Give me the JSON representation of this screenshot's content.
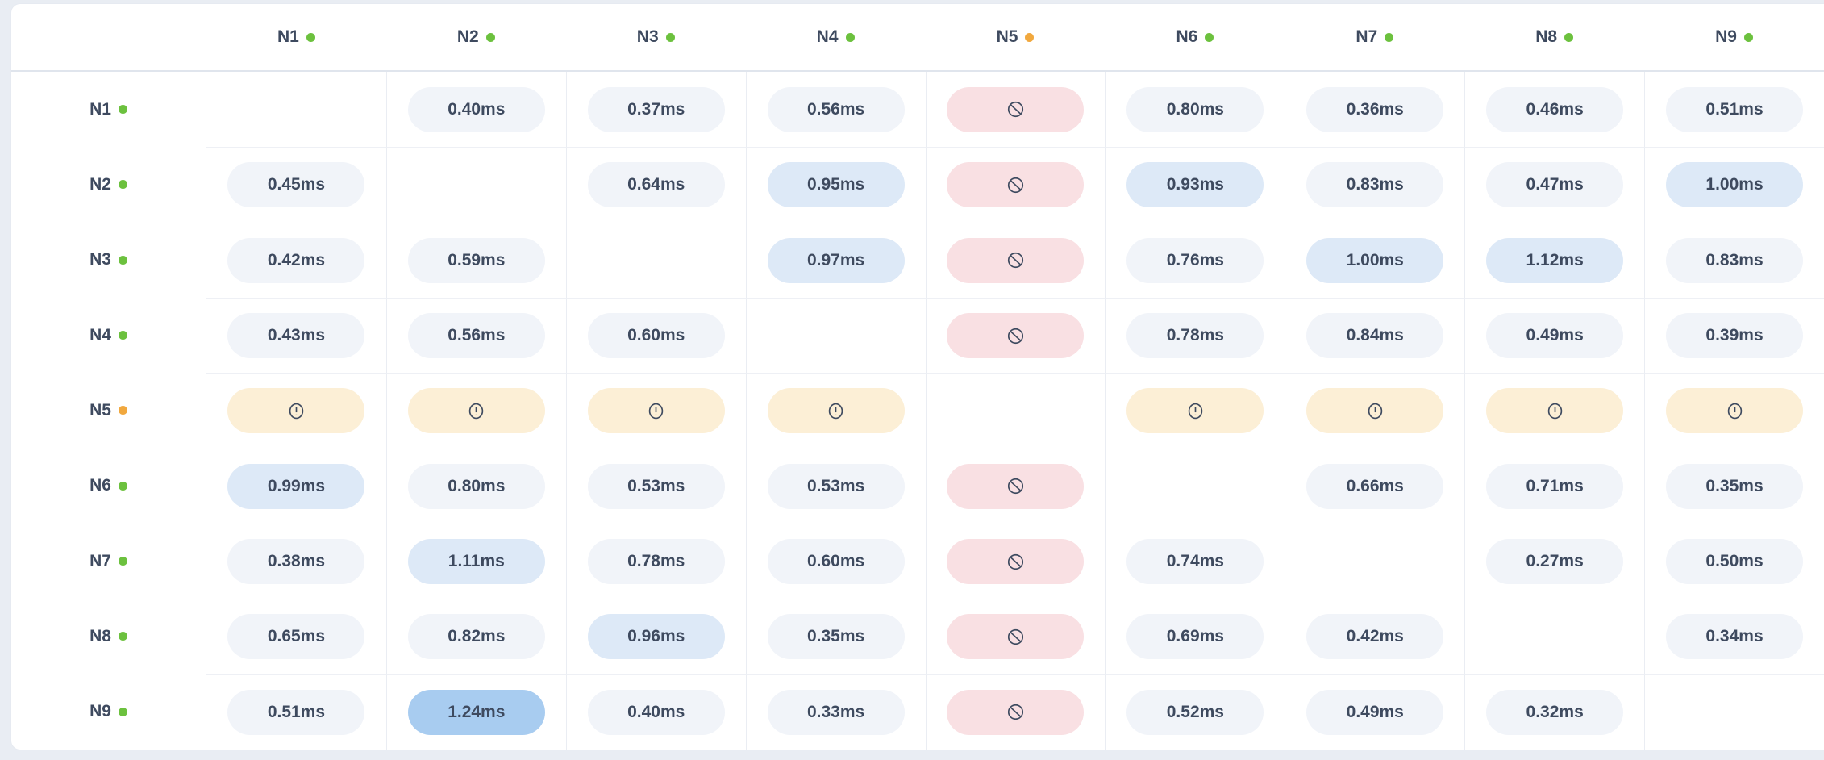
{
  "colors": {
    "page_bg": "#e9edf3",
    "card_bg": "#ffffff",
    "text": "#3e4a5f",
    "dot_online": "#6cc13e",
    "dot_warning": "#f1a83e",
    "pill_normal": "#f1f4f9",
    "pill_elevated": "#dde9f7",
    "pill_high": "#a8ccf0",
    "pill_blocked": "#f9e0e3",
    "pill_warn": "#fcefd6"
  },
  "matrix": {
    "columns": [
      {
        "label": "N1",
        "status": "online"
      },
      {
        "label": "N2",
        "status": "online"
      },
      {
        "label": "N3",
        "status": "online"
      },
      {
        "label": "N4",
        "status": "online"
      },
      {
        "label": "N5",
        "status": "warning"
      },
      {
        "label": "N6",
        "status": "online"
      },
      {
        "label": "N7",
        "status": "online"
      },
      {
        "label": "N8",
        "status": "online"
      },
      {
        "label": "N9",
        "status": "online"
      }
    ],
    "rows": [
      {
        "label": "N1",
        "status": "online",
        "cells": [
          {
            "type": "self"
          },
          {
            "type": "latency",
            "value": "0.40ms",
            "level": "normal"
          },
          {
            "type": "latency",
            "value": "0.37ms",
            "level": "normal"
          },
          {
            "type": "latency",
            "value": "0.56ms",
            "level": "normal"
          },
          {
            "type": "blocked"
          },
          {
            "type": "latency",
            "value": "0.80ms",
            "level": "normal"
          },
          {
            "type": "latency",
            "value": "0.36ms",
            "level": "normal"
          },
          {
            "type": "latency",
            "value": "0.46ms",
            "level": "normal"
          },
          {
            "type": "latency",
            "value": "0.51ms",
            "level": "normal"
          }
        ]
      },
      {
        "label": "N2",
        "status": "online",
        "cells": [
          {
            "type": "latency",
            "value": "0.45ms",
            "level": "normal"
          },
          {
            "type": "self"
          },
          {
            "type": "latency",
            "value": "0.64ms",
            "level": "normal"
          },
          {
            "type": "latency",
            "value": "0.95ms",
            "level": "elevated"
          },
          {
            "type": "blocked"
          },
          {
            "type": "latency",
            "value": "0.93ms",
            "level": "elevated"
          },
          {
            "type": "latency",
            "value": "0.83ms",
            "level": "normal"
          },
          {
            "type": "latency",
            "value": "0.47ms",
            "level": "normal"
          },
          {
            "type": "latency",
            "value": "1.00ms",
            "level": "elevated"
          }
        ]
      },
      {
        "label": "N3",
        "status": "online",
        "cells": [
          {
            "type": "latency",
            "value": "0.42ms",
            "level": "normal"
          },
          {
            "type": "latency",
            "value": "0.59ms",
            "level": "normal"
          },
          {
            "type": "self"
          },
          {
            "type": "latency",
            "value": "0.97ms",
            "level": "elevated"
          },
          {
            "type": "blocked"
          },
          {
            "type": "latency",
            "value": "0.76ms",
            "level": "normal"
          },
          {
            "type": "latency",
            "value": "1.00ms",
            "level": "elevated"
          },
          {
            "type": "latency",
            "value": "1.12ms",
            "level": "elevated"
          },
          {
            "type": "latency",
            "value": "0.83ms",
            "level": "normal"
          }
        ]
      },
      {
        "label": "N4",
        "status": "online",
        "cells": [
          {
            "type": "latency",
            "value": "0.43ms",
            "level": "normal"
          },
          {
            "type": "latency",
            "value": "0.56ms",
            "level": "normal"
          },
          {
            "type": "latency",
            "value": "0.60ms",
            "level": "normal"
          },
          {
            "type": "self"
          },
          {
            "type": "blocked"
          },
          {
            "type": "latency",
            "value": "0.78ms",
            "level": "normal"
          },
          {
            "type": "latency",
            "value": "0.84ms",
            "level": "normal"
          },
          {
            "type": "latency",
            "value": "0.49ms",
            "level": "normal"
          },
          {
            "type": "latency",
            "value": "0.39ms",
            "level": "normal"
          }
        ]
      },
      {
        "label": "N5",
        "status": "warning",
        "cells": [
          {
            "type": "warn"
          },
          {
            "type": "warn"
          },
          {
            "type": "warn"
          },
          {
            "type": "warn"
          },
          {
            "type": "self"
          },
          {
            "type": "warn"
          },
          {
            "type": "warn"
          },
          {
            "type": "warn"
          },
          {
            "type": "warn"
          }
        ]
      },
      {
        "label": "N6",
        "status": "online",
        "cells": [
          {
            "type": "latency",
            "value": "0.99ms",
            "level": "elevated"
          },
          {
            "type": "latency",
            "value": "0.80ms",
            "level": "normal"
          },
          {
            "type": "latency",
            "value": "0.53ms",
            "level": "normal"
          },
          {
            "type": "latency",
            "value": "0.53ms",
            "level": "normal"
          },
          {
            "type": "blocked"
          },
          {
            "type": "self"
          },
          {
            "type": "latency",
            "value": "0.66ms",
            "level": "normal"
          },
          {
            "type": "latency",
            "value": "0.71ms",
            "level": "normal"
          },
          {
            "type": "latency",
            "value": "0.35ms",
            "level": "normal"
          }
        ]
      },
      {
        "label": "N7",
        "status": "online",
        "cells": [
          {
            "type": "latency",
            "value": "0.38ms",
            "level": "normal"
          },
          {
            "type": "latency",
            "value": "1.11ms",
            "level": "elevated"
          },
          {
            "type": "latency",
            "value": "0.78ms",
            "level": "normal"
          },
          {
            "type": "latency",
            "value": "0.60ms",
            "level": "normal"
          },
          {
            "type": "blocked"
          },
          {
            "type": "latency",
            "value": "0.74ms",
            "level": "normal"
          },
          {
            "type": "self"
          },
          {
            "type": "latency",
            "value": "0.27ms",
            "level": "normal"
          },
          {
            "type": "latency",
            "value": "0.50ms",
            "level": "normal"
          }
        ]
      },
      {
        "label": "N8",
        "status": "online",
        "cells": [
          {
            "type": "latency",
            "value": "0.65ms",
            "level": "normal"
          },
          {
            "type": "latency",
            "value": "0.82ms",
            "level": "normal"
          },
          {
            "type": "latency",
            "value": "0.96ms",
            "level": "elevated"
          },
          {
            "type": "latency",
            "value": "0.35ms",
            "level": "normal"
          },
          {
            "type": "blocked"
          },
          {
            "type": "latency",
            "value": "0.69ms",
            "level": "normal"
          },
          {
            "type": "latency",
            "value": "0.42ms",
            "level": "normal"
          },
          {
            "type": "self"
          },
          {
            "type": "latency",
            "value": "0.34ms",
            "level": "normal"
          }
        ]
      },
      {
        "label": "N9",
        "status": "online",
        "cells": [
          {
            "type": "latency",
            "value": "0.51ms",
            "level": "normal"
          },
          {
            "type": "latency",
            "value": "1.24ms",
            "level": "high"
          },
          {
            "type": "latency",
            "value": "0.40ms",
            "level": "normal"
          },
          {
            "type": "latency",
            "value": "0.33ms",
            "level": "normal"
          },
          {
            "type": "blocked"
          },
          {
            "type": "latency",
            "value": "0.52ms",
            "level": "normal"
          },
          {
            "type": "latency",
            "value": "0.49ms",
            "level": "normal"
          },
          {
            "type": "latency",
            "value": "0.32ms",
            "level": "normal"
          },
          {
            "type": "self"
          }
        ]
      }
    ]
  }
}
